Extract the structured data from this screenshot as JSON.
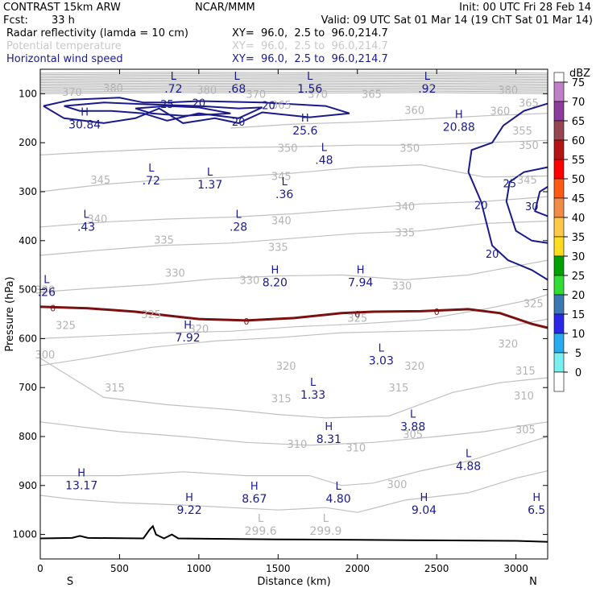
{
  "header": {
    "model": "CONTRAST 15km ARW",
    "org": "NCAR/MMM",
    "init": "Init: 00 UTC Fri 28 Feb 14",
    "fcst_label": "Fcst:",
    "fcst": "33 h",
    "valid": "Valid: 09 UTC Sat 01 Mar 14 (19 ChT Sat 01 Mar 14)",
    "fields": [
      {
        "name": "Radar reflectivity (lamda = 10 cm)",
        "xy": "XY=  96.0,  2.5 to  96.0,214.7"
      },
      {
        "name": "Potential temperature",
        "xy": "XY=  96.0,  2.5 to  96.0,214.7"
      },
      {
        "name": "Horizontal wind speed",
        "xy": "XY=  96.0,  2.5 to  96.0,214.7"
      }
    ]
  },
  "colors": {
    "theta": "#c0c0c0",
    "wind": "#1a1a8c",
    "freeze": "#7a1010",
    "terrain": "#000000"
  },
  "chart_data": {
    "type": "cross-section",
    "xlabel": "Distance (km)",
    "ylabel": "Pressure (hPa)",
    "xlim": [
      0,
      3200
    ],
    "ylim": [
      1050,
      50
    ],
    "xticks": [
      0,
      500,
      1000,
      1500,
      2000,
      2500,
      3000
    ],
    "yticks": [
      100,
      200,
      300,
      400,
      500,
      600,
      700,
      800,
      900,
      1000
    ],
    "end_labels": {
      "left": "S",
      "right": "N"
    },
    "colorbar": {
      "unit": "dBZ",
      "levels": [
        75,
        70,
        65,
        60,
        55,
        50,
        45,
        40,
        35,
        30,
        25,
        20,
        15,
        10,
        5,
        0
      ],
      "colors": [
        "#ffffff",
        "#c080c8",
        "#8c3c9c",
        "#964650",
        "#b41414",
        "#ff0000",
        "#ff5a14",
        "#f08c46",
        "#ffc846",
        "#ffdc1e",
        "#00a000",
        "#32dc32",
        "#3c78b4",
        "#2828e6",
        "#28aaf0",
        "#78f0f0",
        "#ffffff"
      ]
    },
    "theta_labels": [
      {
        "x": 30,
        "p": 632,
        "text": "300"
      },
      {
        "x": 2250,
        "p": 897,
        "text": "300"
      },
      {
        "x": 2350,
        "p": 795,
        "text": "305"
      },
      {
        "x": 3060,
        "p": 785,
        "text": "305"
      },
      {
        "x": 1990,
        "p": 822,
        "text": "310"
      },
      {
        "x": 1620,
        "p": 815,
        "text": "310"
      },
      {
        "x": 3050,
        "p": 716,
        "text": "310"
      },
      {
        "x": 470,
        "p": 700,
        "text": "315"
      },
      {
        "x": 1520,
        "p": 722,
        "text": "315"
      },
      {
        "x": 2260,
        "p": 700,
        "text": "315"
      },
      {
        "x": 3060,
        "p": 665,
        "text": "315"
      },
      {
        "x": 1550,
        "p": 655,
        "text": "320"
      },
      {
        "x": 2360,
        "p": 655,
        "text": "320"
      },
      {
        "x": 2950,
        "p": 610,
        "text": "320"
      },
      {
        "x": 1000,
        "p": 580,
        "text": "320"
      },
      {
        "x": 700,
        "p": 550,
        "text": "325"
      },
      {
        "x": 3110,
        "p": 528,
        "text": "325"
      },
      {
        "x": 160,
        "p": 572,
        "text": "325"
      },
      {
        "x": 2000,
        "p": 557,
        "text": "325"
      },
      {
        "x": 30,
        "p": 500,
        "text": "330"
      },
      {
        "x": 1320,
        "p": 480,
        "text": "330"
      },
      {
        "x": 2280,
        "p": 492,
        "text": "330"
      },
      {
        "x": 850,
        "p": 465,
        "text": "330"
      },
      {
        "x": 780,
        "p": 398,
        "text": "335"
      },
      {
        "x": 2300,
        "p": 383,
        "text": "335"
      },
      {
        "x": 1500,
        "p": 413,
        "text": "335"
      },
      {
        "x": 1520,
        "p": 358,
        "text": "340"
      },
      {
        "x": 2300,
        "p": 330,
        "text": "340"
      },
      {
        "x": 360,
        "p": 355,
        "text": "340"
      },
      {
        "x": 380,
        "p": 275,
        "text": "345"
      },
      {
        "x": 1520,
        "p": 268,
        "text": "345"
      },
      {
        "x": 3070,
        "p": 275,
        "text": "345"
      },
      {
        "x": 1560,
        "p": 210,
        "text": "350"
      },
      {
        "x": 2330,
        "p": 210,
        "text": "350"
      },
      {
        "x": 3080,
        "p": 205,
        "text": "350"
      },
      {
        "x": 3040,
        "p": 175,
        "text": "355"
      },
      {
        "x": 2900,
        "p": 135,
        "text": "360"
      },
      {
        "x": 2360,
        "p": 133,
        "text": "360"
      },
      {
        "x": 2090,
        "p": 100,
        "text": "365"
      },
      {
        "x": 1520,
        "p": 122,
        "text": "365"
      },
      {
        "x": 3080,
        "p": 118,
        "text": "365"
      },
      {
        "x": 1360,
        "p": 100,
        "text": "370"
      },
      {
        "x": 1750,
        "p": 100,
        "text": "370"
      },
      {
        "x": 200,
        "p": 96,
        "text": "370"
      },
      {
        "x": 460,
        "p": 88,
        "text": "380"
      },
      {
        "x": 1050,
        "p": 92,
        "text": "380"
      },
      {
        "x": 2950,
        "p": 92,
        "text": "380"
      }
    ],
    "wind_labels": [
      {
        "x": 800,
        "p": 121,
        "text": "25"
      },
      {
        "x": 1000,
        "p": 118,
        "text": "20"
      },
      {
        "x": 1440,
        "p": 123,
        "text": "20"
      },
      {
        "x": 1250,
        "p": 157,
        "text": "20"
      },
      {
        "x": 2960,
        "p": 283,
        "text": "25"
      },
      {
        "x": 2780,
        "p": 327,
        "text": "20"
      },
      {
        "x": 3100,
        "p": 330,
        "text": "30"
      },
      {
        "x": 2850,
        "p": 427,
        "text": "20"
      }
    ],
    "freezing_labels": [
      {
        "x": 80,
        "p": 538,
        "text": "0"
      },
      {
        "x": 1300,
        "p": 565,
        "text": "0"
      },
      {
        "x": 2000,
        "p": 550,
        "text": "0"
      },
      {
        "x": 2500,
        "p": 545,
        "text": "0"
      }
    ],
    "extrema": [
      {
        "x": 840,
        "p": 75,
        "type": "L",
        "value": ".72"
      },
      {
        "x": 1240,
        "p": 75,
        "type": "L",
        "value": ".68"
      },
      {
        "x": 1700,
        "p": 75,
        "type": "L",
        "value": "1.56"
      },
      {
        "x": 2440,
        "p": 75,
        "type": "L",
        "value": ".92"
      },
      {
        "x": 280,
        "p": 148,
        "type": "H",
        "value": "30.84"
      },
      {
        "x": 1670,
        "p": 160,
        "type": "H",
        "value": "25.6"
      },
      {
        "x": 2640,
        "p": 153,
        "type": "H",
        "value": "20.88"
      },
      {
        "x": 1790,
        "p": 220,
        "type": "L",
        "value": ".48"
      },
      {
        "x": 700,
        "p": 262,
        "type": "L",
        "value": ".72"
      },
      {
        "x": 1070,
        "p": 270,
        "type": "L",
        "value": "1.37"
      },
      {
        "x": 1540,
        "p": 290,
        "type": "L",
        "value": ".36"
      },
      {
        "x": 290,
        "p": 357,
        "type": "L",
        "value": ".43"
      },
      {
        "x": 1250,
        "p": 357,
        "type": "L",
        "value": ".28"
      },
      {
        "x": 1480,
        "p": 470,
        "type": "H",
        "value": "8.20"
      },
      {
        "x": 2020,
        "p": 470,
        "type": "H",
        "value": "7.94"
      },
      {
        "x": 40,
        "p": 490,
        "type": "L",
        "value": ".26"
      },
      {
        "x": 930,
        "p": 583,
        "type": "H",
        "value": "7.92"
      },
      {
        "x": 2150,
        "p": 630,
        "type": "L",
        "value": "3.03"
      },
      {
        "x": 1720,
        "p": 700,
        "type": "L",
        "value": "1.33"
      },
      {
        "x": 1820,
        "p": 790,
        "type": "H",
        "value": "8.31"
      },
      {
        "x": 2350,
        "p": 765,
        "type": "L",
        "value": "3.88"
      },
      {
        "x": 2700,
        "p": 845,
        "type": "L",
        "value": "4.88"
      },
      {
        "x": 260,
        "p": 885,
        "type": "H",
        "value": "13.17"
      },
      {
        "x": 1350,
        "p": 912,
        "type": "H",
        "value": "8.67"
      },
      {
        "x": 1880,
        "p": 912,
        "type": "L",
        "value": "4.80"
      },
      {
        "x": 940,
        "p": 935,
        "type": "H",
        "value": "9.22"
      },
      {
        "x": 2420,
        "p": 935,
        "type": "H",
        "value": "9.04"
      },
      {
        "x": 3130,
        "p": 935,
        "type": "H",
        "value": "6.5"
      },
      {
        "x": 1390,
        "p": 978,
        "type": "L",
        "value": "299.6"
      },
      {
        "x": 1800,
        "p": 978,
        "type": "L",
        "value": "299.9"
      }
    ]
  }
}
